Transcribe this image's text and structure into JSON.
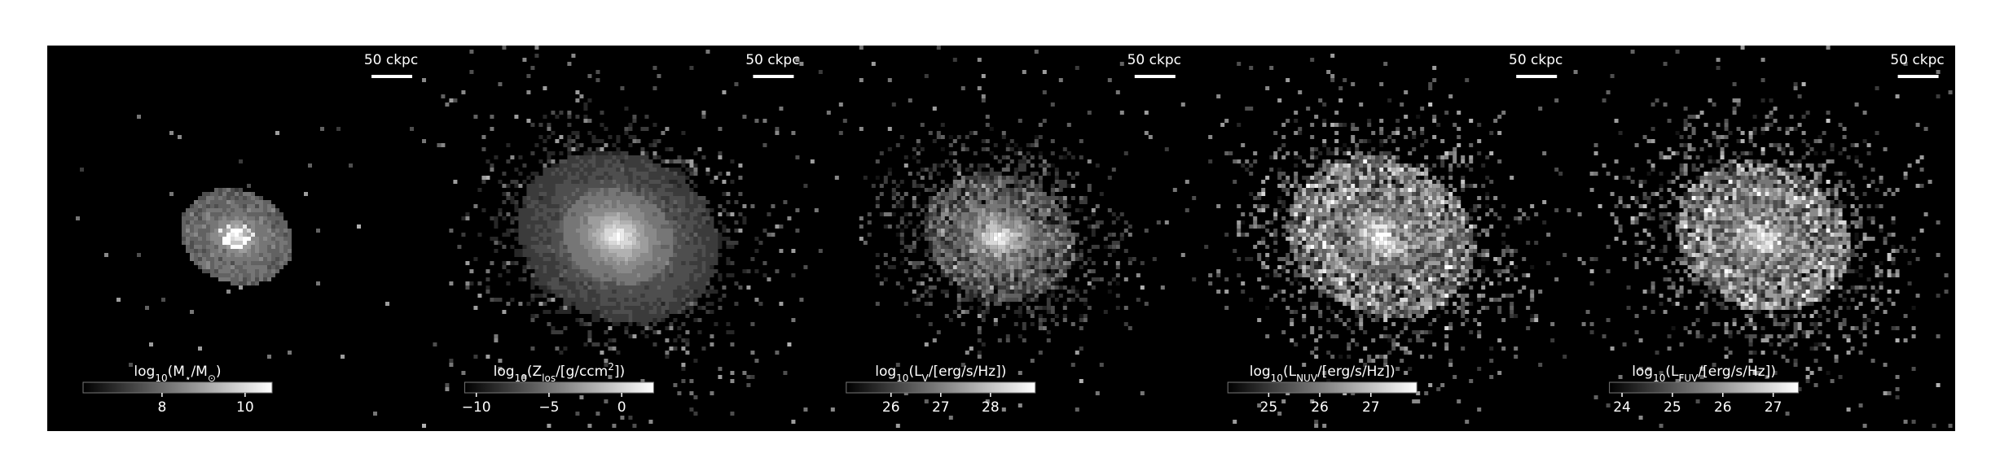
{
  "panels": [
    {
      "scale_bar": "50 ckpc",
      "colorbar": {
        "label": [
          {
            "text": "log"
          },
          {
            "text": "10",
            "sub": true
          },
          {
            "text": "(M"
          },
          {
            "text": "⋆",
            "sub": true
          },
          {
            "text": "/M"
          },
          {
            "text": "⊙",
            "sub": true
          },
          {
            "text": ")"
          }
        ],
        "lim": [
          6.1,
          10.65
        ],
        "ticks": [
          8,
          10
        ]
      }
    },
    {
      "scale_bar": "50 ckpc",
      "colorbar": {
        "label": [
          {
            "text": "log"
          },
          {
            "text": "10",
            "sub": true
          },
          {
            "text": "(Z"
          },
          {
            "text": "los",
            "sub": true
          },
          {
            "text": "/[g/ccm"
          },
          {
            "text": "2",
            "sup": true
          },
          {
            "text": "])"
          }
        ],
        "lim": [
          -10.8,
          2.2
        ],
        "ticks": [
          {
            "value": -10,
            "label": "−10"
          },
          {
            "value": -5,
            "label": "−5"
          },
          0
        ]
      }
    },
    {
      "scale_bar": "50 ckpc",
      "colorbar": {
        "label": [
          {
            "text": "log"
          },
          {
            "text": "10",
            "sub": true
          },
          {
            "text": "(L"
          },
          {
            "text": "V",
            "sub": true
          },
          {
            "text": "/[erg/s/Hz])"
          }
        ],
        "lim": [
          25.1,
          28.9
        ],
        "ticks": [
          26,
          27,
          28
        ]
      }
    },
    {
      "scale_bar": "50 ckpc",
      "colorbar": {
        "label": [
          {
            "text": "log"
          },
          {
            "text": "10",
            "sub": true
          },
          {
            "text": "(L"
          },
          {
            "text": "NUV",
            "sub": true
          },
          {
            "text": "/[erg/s/Hz])"
          }
        ],
        "lim": [
          24.2,
          27.9
        ],
        "ticks": [
          25,
          26,
          27
        ]
      }
    },
    {
      "scale_bar": "50 ckpc",
      "colorbar": {
        "label": [
          {
            "text": "log"
          },
          {
            "text": "10",
            "sub": true
          },
          {
            "text": "(L"
          },
          {
            "text": "FUV",
            "sub": true
          },
          {
            "text": "/[erg/s/Hz])"
          }
        ],
        "lim": [
          23.75,
          27.5
        ],
        "ticks": [
          24,
          25,
          26,
          27
        ]
      }
    }
  ]
}
